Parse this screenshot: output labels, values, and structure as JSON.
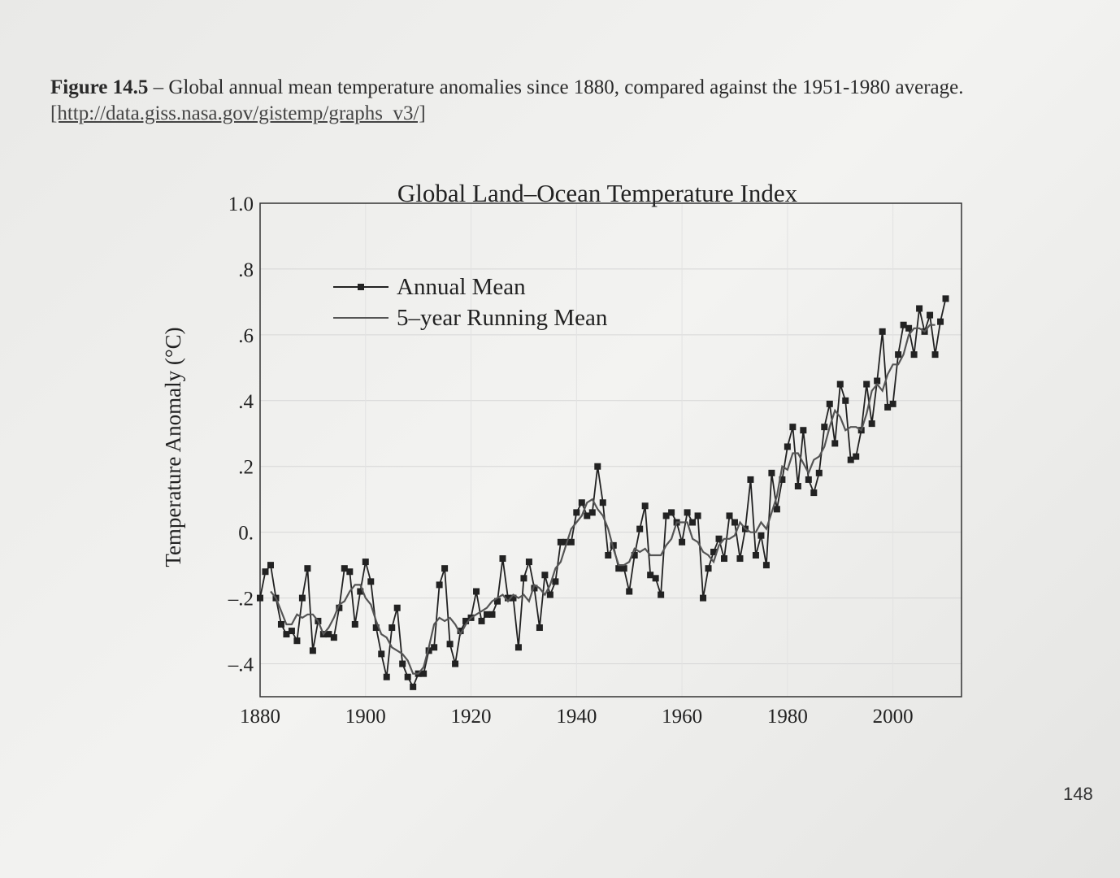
{
  "caption": {
    "label": "Figure 14.5",
    "text": " – Global annual mean temperature anomalies since 1880, compared against the 1951-1980 average. ",
    "link": "[http://data.giss.nasa.gov/gistemp/graphs_v3/]"
  },
  "page_number": "148",
  "chart_data": {
    "type": "line",
    "title": "Global Land–Ocean Temperature Index",
    "y_label": "Temperature Anomaly (°C)",
    "legend": "upper left",
    "xlim": [
      1880,
      2013
    ],
    "xticks": [
      1880,
      1900,
      1920,
      1940,
      1960,
      1980,
      2000
    ],
    "ylim": [
      -0.5,
      1.0
    ],
    "yticks": [
      {
        "value": -0.4,
        "label": "–.4"
      },
      {
        "value": -0.2,
        "label": "–.2"
      },
      {
        "value": 0,
        "label": "0."
      },
      {
        "value": 0.2,
        "label": ".2"
      },
      {
        "value": 0.4,
        "label": ".4"
      },
      {
        "value": 0.6,
        "label": ".6"
      },
      {
        "value": 0.8,
        "label": ".8"
      },
      {
        "value": 1.0,
        "label": "1.0"
      }
    ],
    "grid": true,
    "x": [
      1880,
      1881,
      1882,
      1883,
      1884,
      1885,
      1886,
      1887,
      1888,
      1889,
      1890,
      1891,
      1892,
      1893,
      1894,
      1895,
      1896,
      1897,
      1898,
      1899,
      1900,
      1901,
      1902,
      1903,
      1904,
      1905,
      1906,
      1907,
      1908,
      1909,
      1910,
      1911,
      1912,
      1913,
      1914,
      1915,
      1916,
      1917,
      1918,
      1919,
      1920,
      1921,
      1922,
      1923,
      1924,
      1925,
      1926,
      1927,
      1928,
      1929,
      1930,
      1931,
      1932,
      1933,
      1934,
      1935,
      1936,
      1937,
      1938,
      1939,
      1940,
      1941,
      1942,
      1943,
      1944,
      1945,
      1946,
      1947,
      1948,
      1949,
      1950,
      1951,
      1952,
      1953,
      1954,
      1955,
      1956,
      1957,
      1958,
      1959,
      1960,
      1961,
      1962,
      1963,
      1964,
      1965,
      1966,
      1967,
      1968,
      1969,
      1970,
      1971,
      1972,
      1973,
      1974,
      1975,
      1976,
      1977,
      1978,
      1979,
      1980,
      1981,
      1982,
      1983,
      1984,
      1985,
      1986,
      1987,
      1988,
      1989,
      1990,
      1991,
      1992,
      1993,
      1994,
      1995,
      1996,
      1997,
      1998,
      1999,
      2000,
      2001,
      2002,
      2003,
      2004,
      2005,
      2006,
      2007,
      2008,
      2009,
      2010
    ],
    "series": [
      {
        "name": "Annual Mean",
        "color": "#222222",
        "marker": "square",
        "values": [
          -0.2,
          -0.12,
          -0.1,
          -0.2,
          -0.28,
          -0.31,
          -0.3,
          -0.33,
          -0.2,
          -0.11,
          -0.36,
          -0.27,
          -0.31,
          -0.31,
          -0.32,
          -0.23,
          -0.11,
          -0.12,
          -0.28,
          -0.18,
          -0.09,
          -0.15,
          -0.29,
          -0.37,
          -0.44,
          -0.29,
          -0.23,
          -0.4,
          -0.44,
          -0.47,
          -0.43,
          -0.43,
          -0.36,
          -0.35,
          -0.16,
          -0.11,
          -0.34,
          -0.4,
          -0.3,
          -0.27,
          -0.26,
          -0.18,
          -0.27,
          -0.25,
          -0.25,
          -0.21,
          -0.08,
          -0.2,
          -0.2,
          -0.35,
          -0.14,
          -0.09,
          -0.17,
          -0.29,
          -0.13,
          -0.19,
          -0.15,
          -0.03,
          -0.03,
          -0.03,
          0.06,
          0.09,
          0.05,
          0.06,
          0.2,
          0.09,
          -0.07,
          -0.04,
          -0.11,
          -0.11,
          -0.18,
          -0.07,
          0.01,
          0.08,
          -0.13,
          -0.14,
          -0.19,
          0.05,
          0.06,
          0.03,
          -0.03,
          0.06,
          0.03,
          0.05,
          -0.2,
          -0.11,
          -0.06,
          -0.02,
          -0.08,
          0.05,
          0.03,
          -0.08,
          0.01,
          0.16,
          -0.07,
          -0.01,
          -0.1,
          0.18,
          0.07,
          0.16,
          0.26,
          0.32,
          0.14,
          0.31,
          0.16,
          0.12,
          0.18,
          0.32,
          0.39,
          0.27,
          0.45,
          0.4,
          0.22,
          0.23,
          0.31,
          0.45,
          0.33,
          0.46,
          0.61,
          0.38,
          0.39,
          0.54,
          0.63,
          0.62,
          0.54,
          0.68,
          0.61,
          0.66,
          0.54,
          0.64,
          0.71
        ]
      },
      {
        "name": "5–year Running Mean",
        "color": "#555555",
        "values": [
          null,
          null,
          -0.18,
          -0.2,
          -0.24,
          -0.28,
          -0.28,
          -0.25,
          -0.26,
          -0.25,
          -0.25,
          -0.27,
          -0.31,
          -0.29,
          -0.26,
          -0.22,
          -0.21,
          -0.18,
          -0.16,
          -0.16,
          -0.2,
          -0.22,
          -0.27,
          -0.31,
          -0.32,
          -0.35,
          -0.36,
          -0.37,
          -0.39,
          -0.43,
          -0.43,
          -0.41,
          -0.35,
          -0.28,
          -0.26,
          -0.27,
          -0.26,
          -0.28,
          -0.31,
          -0.28,
          -0.26,
          -0.25,
          -0.24,
          -0.23,
          -0.21,
          -0.2,
          -0.19,
          -0.21,
          -0.19,
          -0.2,
          -0.19,
          -0.21,
          -0.16,
          -0.17,
          -0.19,
          -0.16,
          -0.11,
          -0.09,
          -0.04,
          0.01,
          0.03,
          0.05,
          0.09,
          0.1,
          0.07,
          0.05,
          0.01,
          -0.05,
          -0.1,
          -0.1,
          -0.09,
          -0.05,
          -0.06,
          -0.05,
          -0.07,
          -0.07,
          -0.07,
          -0.04,
          -0.02,
          0.03,
          0.03,
          0.03,
          -0.02,
          -0.03,
          -0.06,
          -0.07,
          -0.09,
          -0.04,
          -0.02,
          -0.02,
          -0.01,
          0.03,
          0.01,
          0.0,
          0.0,
          0.03,
          0.01,
          0.06,
          0.11,
          0.2,
          0.19,
          0.24,
          0.24,
          0.21,
          0.18,
          0.22,
          0.23,
          0.26,
          0.32,
          0.37,
          0.35,
          0.31,
          0.32,
          0.32,
          0.31,
          0.36,
          0.43,
          0.45,
          0.43,
          0.48,
          0.51,
          0.51,
          0.54,
          0.6,
          0.62,
          0.62,
          0.61,
          0.63,
          0.63,
          null,
          null
        ]
      }
    ]
  }
}
